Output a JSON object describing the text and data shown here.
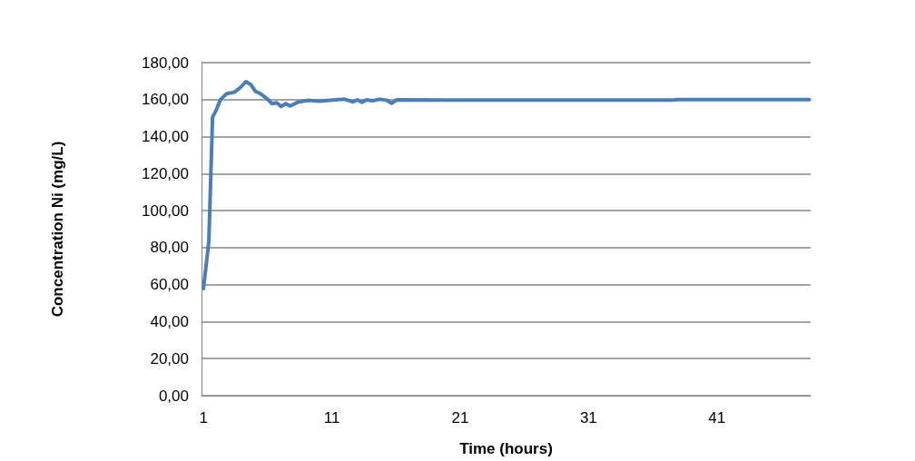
{
  "chart_data": {
    "type": "line",
    "xlabel": "Time (hours)",
    "ylabel": "Concentration Ni (mg/L)",
    "x": [
      1,
      1.42,
      1.71,
      1.99,
      2.34,
      2.81,
      3.4,
      3.87,
      4.3,
      4.7,
      5.05,
      5.45,
      6,
      6.35,
      6.7,
      7.06,
      7.41,
      7.76,
      8.35,
      9.17,
      10,
      11.06,
      12,
      12.66,
      13,
      13.35,
      13.7,
      14.17,
      14.71,
      15.3,
      15.65,
      16.05,
      20,
      25,
      30,
      37.5,
      38,
      43,
      48.2
    ],
    "series": [
      {
        "color": "#4a7ebb",
        "values": [
          57.9,
          83.2,
          150.5,
          154.2,
          160.2,
          163.2,
          164,
          166.5,
          169.7,
          168.1,
          164.5,
          163.2,
          160.2,
          157.8,
          158.3,
          156.3,
          157.8,
          156.6,
          158.6,
          159.6,
          159.1,
          159.8,
          160.2,
          158.8,
          159.9,
          158.6,
          159.9,
          159.4,
          160.2,
          159.6,
          158,
          159.9,
          159.8,
          159.8,
          159.8,
          159.8,
          160,
          160,
          160
        ]
      }
    ],
    "xlim": [
      0.85,
      48.3
    ],
    "xticks": [
      1,
      11,
      21,
      31,
      41
    ],
    "ylim": [
      0,
      180
    ],
    "yticks": [
      {
        "value": 0,
        "label": "0,00"
      },
      {
        "value": 20,
        "label": "20,00"
      },
      {
        "value": 40,
        "label": "40,00"
      },
      {
        "value": 60,
        "label": "60,00"
      },
      {
        "value": 80,
        "label": "80,00"
      },
      {
        "value": 100,
        "label": "100,00"
      },
      {
        "value": 120,
        "label": "120,00"
      },
      {
        "value": 140,
        "label": "140,00"
      },
      {
        "value": 160,
        "label": "160,00"
      },
      {
        "value": 180,
        "label": "180,00"
      }
    ],
    "grid": "y",
    "marker": "none",
    "line_style": "solid"
  }
}
